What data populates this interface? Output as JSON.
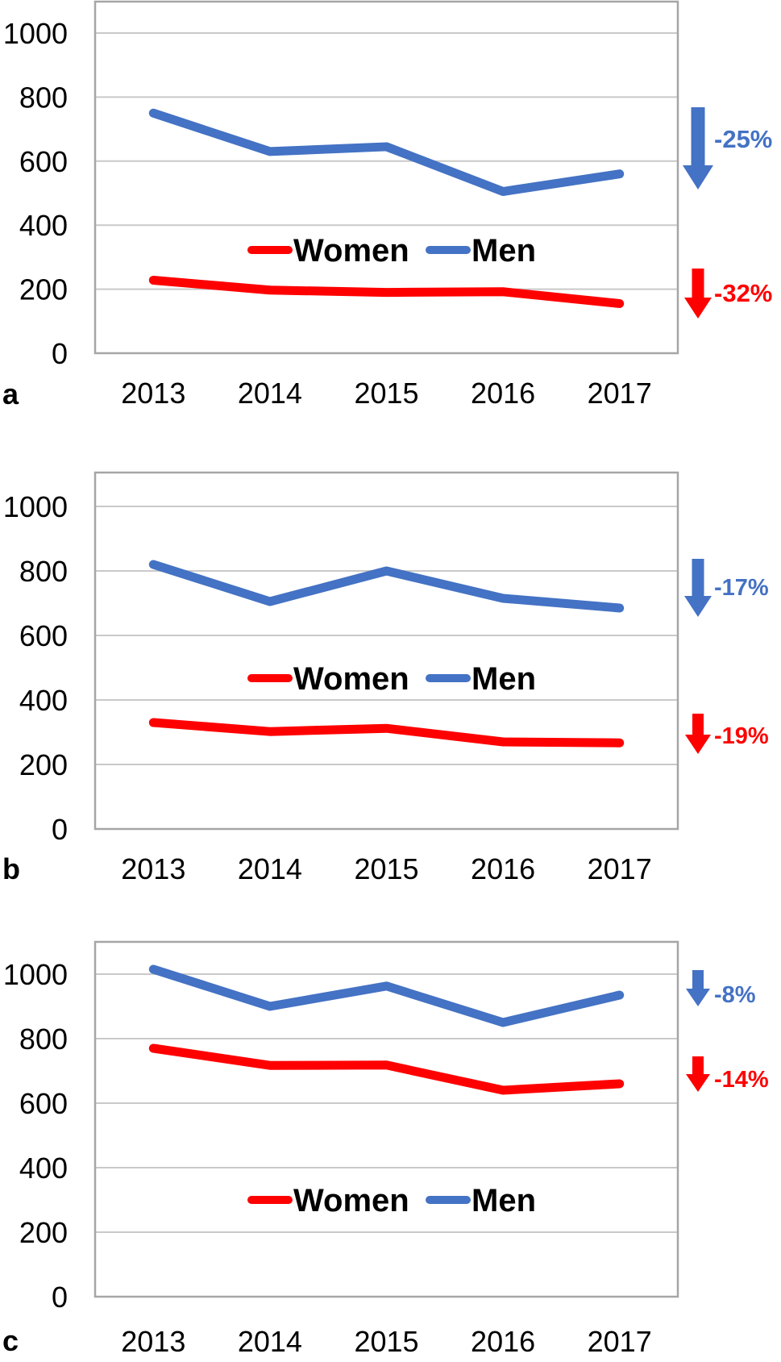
{
  "figure": {
    "panels": [
      {
        "panel_letter": "a"
      },
      {
        "panel_letter": "b"
      },
      {
        "panel_letter": "c"
      }
    ]
  },
  "colors": {
    "women": "#FF0000",
    "men": "#4472C4",
    "gridline": "#C9C9C9",
    "plot_border": "#A6A6A6",
    "text": "#000000"
  },
  "chart_data": [
    {
      "type": "line",
      "panel": "a",
      "title": "",
      "xlabel": "",
      "ylabel": "",
      "categories": [
        "2013",
        "2014",
        "2015",
        "2016",
        "2017"
      ],
      "series": [
        {
          "name": "Women",
          "color": "#FF0000",
          "values": [
            228,
            197,
            190,
            192,
            155
          ]
        },
        {
          "name": "Men",
          "color": "#4472C4",
          "values": [
            750,
            630,
            645,
            505,
            560
          ]
        }
      ],
      "ylim": [
        0,
        1100
      ],
      "yticks": [
        0,
        200,
        400,
        600,
        800,
        1000
      ],
      "grid": "horizontal",
      "legend_position": "inside-center",
      "annotations": [
        {
          "series": "Men",
          "icon": "down-arrow",
          "label": "-25%",
          "color": "#4472C4"
        },
        {
          "series": "Women",
          "icon": "down-arrow",
          "label": "-32%",
          "color": "#FF0000"
        }
      ]
    },
    {
      "type": "line",
      "panel": "b",
      "title": "",
      "xlabel": "",
      "ylabel": "",
      "categories": [
        "2013",
        "2014",
        "2015",
        "2016",
        "2017"
      ],
      "series": [
        {
          "name": "Women",
          "color": "#FF0000",
          "values": [
            330,
            302,
            312,
            270,
            267
          ]
        },
        {
          "name": "Men",
          "color": "#4472C4",
          "values": [
            820,
            705,
            800,
            715,
            685
          ]
        }
      ],
      "ylim": [
        0,
        1100
      ],
      "yticks": [
        0,
        200,
        400,
        600,
        800,
        1000
      ],
      "grid": "horizontal",
      "legend_position": "inside-center",
      "annotations": [
        {
          "series": "Men",
          "icon": "down-arrow",
          "label": "-17%",
          "color": "#4472C4"
        },
        {
          "series": "Women",
          "icon": "down-arrow",
          "label": "-19%",
          "color": "#FF0000"
        }
      ]
    },
    {
      "type": "line",
      "panel": "c",
      "title": "",
      "xlabel": "",
      "ylabel": "",
      "categories": [
        "2013",
        "2014",
        "2015",
        "2016",
        "2017"
      ],
      "series": [
        {
          "name": "Women",
          "color": "#FF0000",
          "values": [
            770,
            717,
            718,
            640,
            660
          ]
        },
        {
          "name": "Men",
          "color": "#4472C4",
          "values": [
            1015,
            900,
            963,
            850,
            935
          ]
        }
      ],
      "ylim": [
        0,
        1100
      ],
      "yticks": [
        0,
        200,
        400,
        600,
        800,
        1000
      ],
      "grid": "horizontal",
      "legend_position": "inside-center",
      "annotations": [
        {
          "series": "Men",
          "icon": "down-arrow",
          "label": "-8%",
          "color": "#4472C4"
        },
        {
          "series": "Women",
          "icon": "down-arrow",
          "label": "-14%",
          "color": "#FF0000"
        }
      ]
    }
  ]
}
